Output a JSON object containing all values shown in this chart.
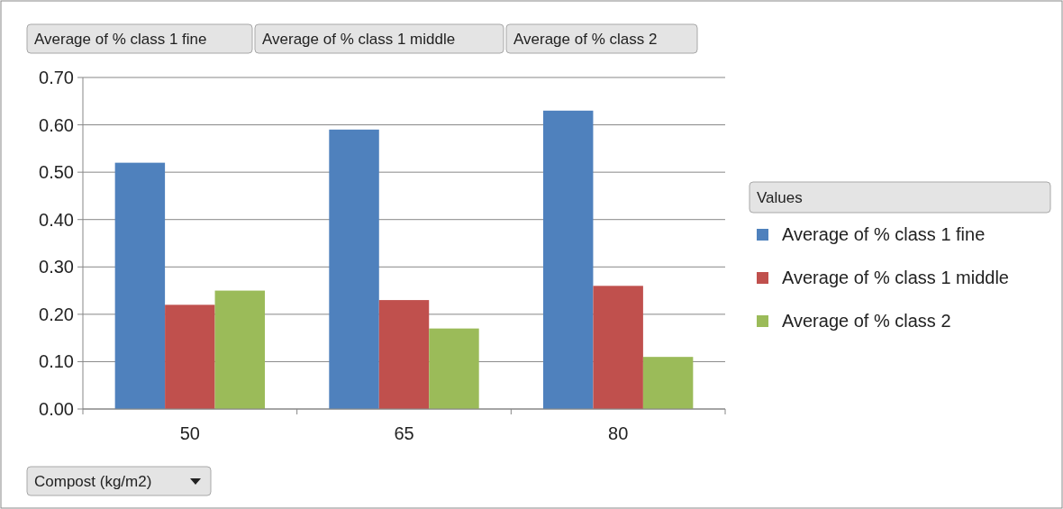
{
  "chart_data": {
    "type": "bar",
    "xlabel": "Compost (kg/m2)",
    "legend_title": "Values",
    "categories": [
      "50",
      "65",
      "80"
    ],
    "series": [
      {
        "name": "Average of % class 1 fine",
        "color": "#4f81bd",
        "values": [
          0.52,
          0.59,
          0.63
        ]
      },
      {
        "name": "Average of % class 1 middle",
        "color": "#c0504d",
        "values": [
          0.22,
          0.23,
          0.26
        ]
      },
      {
        "name": "Average of % class 2",
        "color": "#9bbb59",
        "values": [
          0.25,
          0.17,
          0.11
        ]
      }
    ],
    "ylim": [
      0,
      0.7
    ],
    "yticks": [
      {
        "value": 0,
        "label": "0.00"
      },
      {
        "value": 0.1,
        "label": "0.10"
      },
      {
        "value": 0.2,
        "label": "0.20"
      },
      {
        "value": 0.3,
        "label": "0.30"
      },
      {
        "value": 0.4,
        "label": "0.40"
      },
      {
        "value": 0.5,
        "label": "0.50"
      },
      {
        "value": 0.6,
        "label": "0.60"
      },
      {
        "value": 0.7,
        "label": "0.70"
      }
    ],
    "grid": "y",
    "legend": "right"
  }
}
